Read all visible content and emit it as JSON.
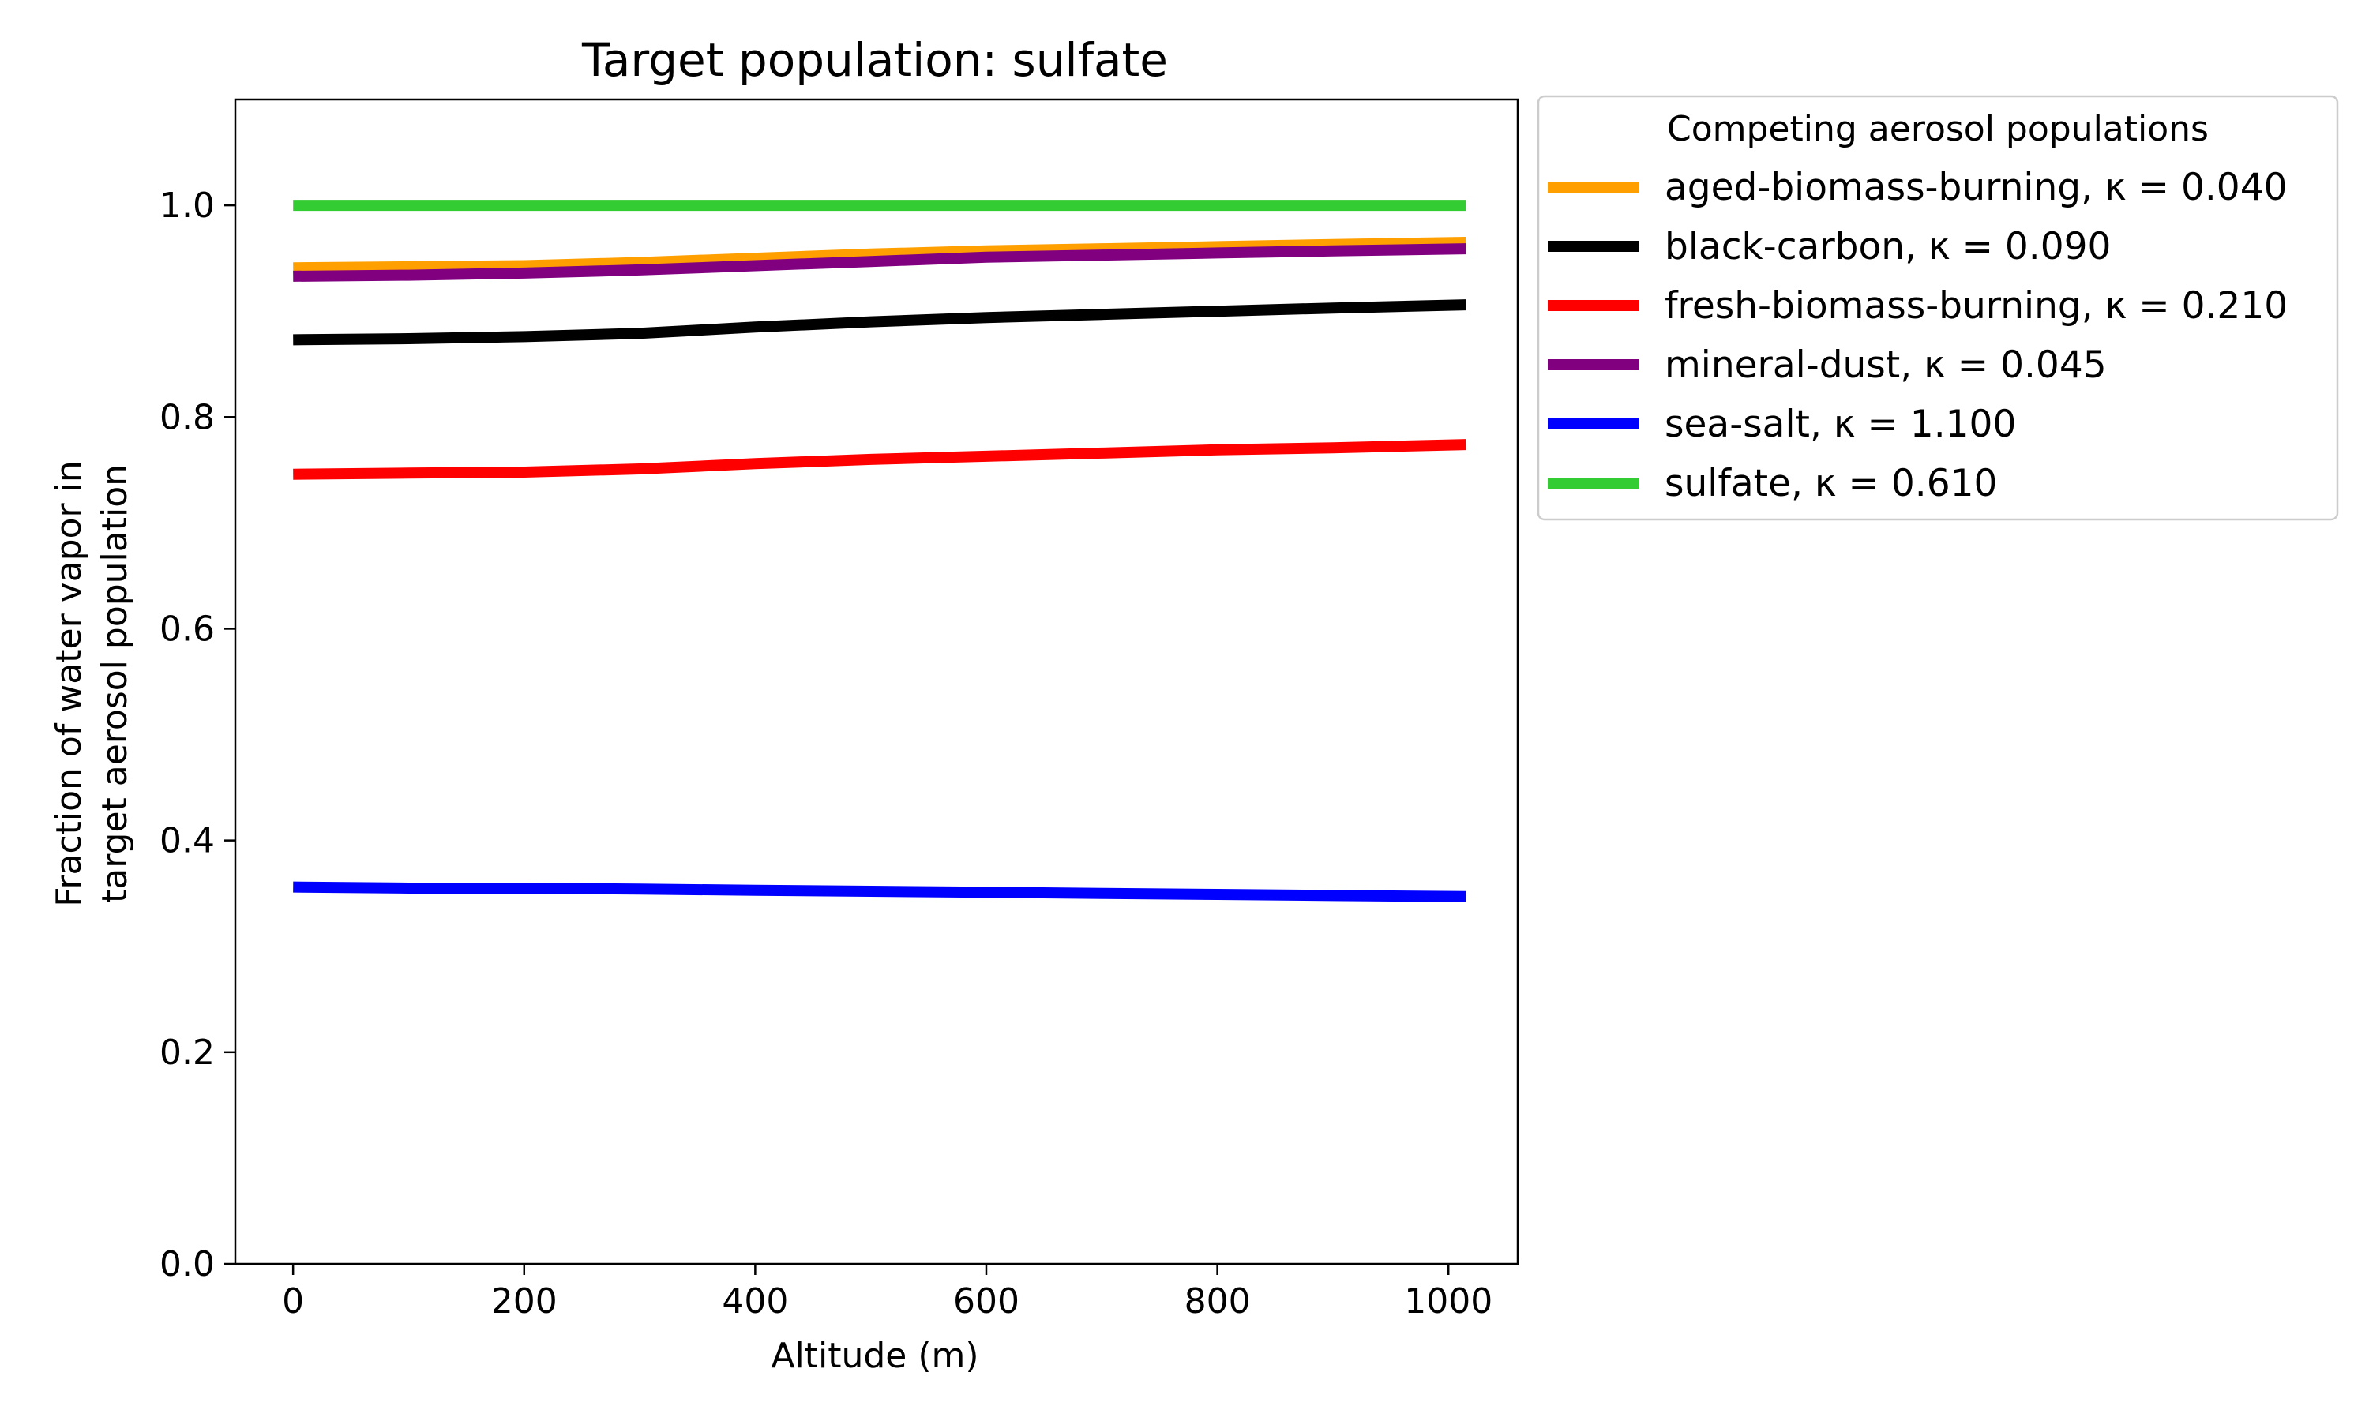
{
  "chart_data": {
    "type": "line",
    "title": "Target population: sulfate",
    "xlabel": "Altitude (m)",
    "ylabel_lines": [
      "Fraction of water vapor in",
      "target aerosol population"
    ],
    "xlim": [
      -50,
      1060
    ],
    "ylim": [
      0,
      1.1
    ],
    "xticks": [
      0,
      200,
      400,
      600,
      800,
      1000
    ],
    "xtick_labels": [
      "0",
      "200",
      "400",
      "600",
      "800",
      "1000"
    ],
    "yticks": [
      0.0,
      0.2,
      0.4,
      0.6,
      0.8,
      1.0
    ],
    "ytick_labels": [
      "0.0",
      "0.2",
      "0.4",
      "0.6",
      "0.8",
      "1.0"
    ],
    "grid": false,
    "legend": {
      "title": "Competing aerosol populations",
      "placement": "outside upper right"
    },
    "x": [
      0,
      100,
      200,
      300,
      400,
      500,
      600,
      700,
      800,
      900,
      1015
    ],
    "series": [
      {
        "name": "aged-biomass-burning",
        "kappa": "0.040",
        "color": "#ff9f00",
        "values": [
          0.941,
          0.942,
          0.943,
          0.946,
          0.95,
          0.954,
          0.957,
          0.959,
          0.961,
          0.963,
          0.965
        ]
      },
      {
        "name": "black-carbon",
        "kappa": "0.090",
        "color": "#000000",
        "values": [
          0.873,
          0.874,
          0.876,
          0.879,
          0.885,
          0.89,
          0.894,
          0.897,
          0.9,
          0.903,
          0.906
        ]
      },
      {
        "name": "fresh-biomass-burning",
        "kappa": "0.210",
        "color": "#ff0000",
        "values": [
          0.746,
          0.747,
          0.748,
          0.751,
          0.756,
          0.76,
          0.763,
          0.766,
          0.769,
          0.771,
          0.774
        ]
      },
      {
        "name": "mineral-dust",
        "kappa": "0.045",
        "color": "#800080",
        "values": [
          0.933,
          0.934,
          0.936,
          0.939,
          0.943,
          0.947,
          0.951,
          0.953,
          0.955,
          0.957,
          0.959
        ]
      },
      {
        "name": "sea-salt",
        "kappa": "1.100",
        "color": "#0000ff",
        "values": [
          0.356,
          0.355,
          0.355,
          0.354,
          0.353,
          0.352,
          0.351,
          0.35,
          0.349,
          0.348,
          0.347
        ]
      },
      {
        "name": "sulfate",
        "kappa": "0.610",
        "color": "#33cc33",
        "values": [
          1.0,
          1.0,
          1.0,
          1.0,
          1.0,
          1.0,
          1.0,
          1.0,
          1.0,
          1.0,
          1.0
        ]
      }
    ]
  }
}
